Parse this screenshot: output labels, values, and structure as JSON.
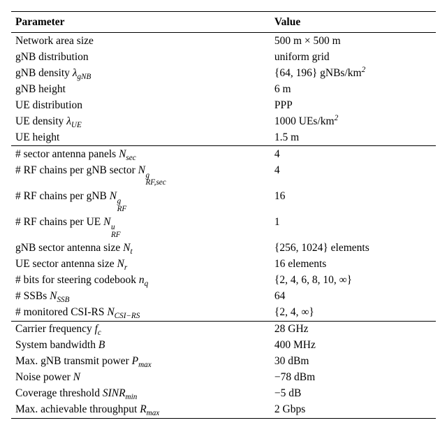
{
  "table": {
    "col_param": "Parameter",
    "col_value": "Value",
    "font_family": "Palatino",
    "font_size_pt": 12,
    "rule_color": "#000000",
    "background_color": "#ffffff",
    "text_color": "#000000",
    "groups": [
      {
        "rows": [
          {
            "param_text": "Network area size",
            "param_symbol": null,
            "value": "500 m × 500 m"
          },
          {
            "param_text": "gNB distribution",
            "param_symbol": null,
            "value": "uniform grid"
          },
          {
            "param_text": "gNB density ",
            "param_symbol": {
              "base": "λ",
              "sub": "gNB"
            },
            "value_html": "{64, 196} gNBs/km<span class=\"sup\">2</span>"
          },
          {
            "param_text": "gNB height",
            "param_symbol": null,
            "value": "6 m"
          },
          {
            "param_text": "UE distribution",
            "param_symbol": null,
            "value": "PPP"
          },
          {
            "param_text": "UE density ",
            "param_symbol": {
              "base": "λ",
              "sub": "UE"
            },
            "value_html": "1000 UEs/km<span class=\"sup\">2</span>"
          },
          {
            "param_text": "UE height",
            "param_symbol": null,
            "value": "1.5 m"
          }
        ]
      },
      {
        "rows": [
          {
            "param_text": "# sector antenna panels ",
            "param_symbol": {
              "base": "N",
              "sub": "sec"
            },
            "value": "4"
          },
          {
            "param_text": "# RF chains per gNB sector ",
            "param_symbol": {
              "base": "N",
              "sub": "RF,sec",
              "sup": "g"
            },
            "value": "4"
          },
          {
            "param_text": "# RF chains per gNB ",
            "param_symbol": {
              "base": "N",
              "sub": "RF",
              "sup": "g"
            },
            "value": "16"
          },
          {
            "param_text": "# RF chains per UE ",
            "param_symbol": {
              "base": "N",
              "sub": "RF",
              "sup": "u"
            },
            "value": "1"
          },
          {
            "param_text": "gNB sector antenna size ",
            "param_symbol": {
              "base": "N",
              "sub": "t"
            },
            "value": "{256, 1024} elements"
          },
          {
            "param_text": "UE sector antenna size ",
            "param_symbol": {
              "base": "N",
              "sub": "r"
            },
            "value": "16 elements"
          },
          {
            "param_text": "# bits for steering codebook ",
            "param_symbol": {
              "base": "n",
              "sub": "q"
            },
            "value": "{2, 4, 6, 8, 10, ∞}"
          },
          {
            "param_text": "# SSBs ",
            "param_symbol": {
              "base": "N",
              "sub": "SSB"
            },
            "value": "64"
          },
          {
            "param_text": "# monitored CSI-RS ",
            "param_symbol": {
              "base": "N",
              "sub": "CSI−RS"
            },
            "value": "{2, 4, ∞}"
          }
        ]
      },
      {
        "rows": [
          {
            "param_text": "Carrier frequency ",
            "param_symbol": {
              "base": "f",
              "sub": "c"
            },
            "value": "28 GHz"
          },
          {
            "param_text": "System bandwidth ",
            "param_symbol": {
              "base": "B"
            },
            "value": "400 MHz"
          },
          {
            "param_text": "Max. gNB transmit power ",
            "param_symbol": {
              "base": "P",
              "sub": "max"
            },
            "value": "30 dBm"
          },
          {
            "param_text": "Noise power ",
            "param_symbol": {
              "base": "N"
            },
            "value": "−78 dBm"
          },
          {
            "param_text": "Coverage threshold ",
            "param_symbol": {
              "base": "SINR",
              "sub": "min"
            },
            "value": "−5 dB"
          },
          {
            "param_text": "Max. achievable throughput ",
            "param_symbol": {
              "base": "R",
              "sub": "max"
            },
            "value": "2 Gbps"
          }
        ]
      }
    ]
  }
}
